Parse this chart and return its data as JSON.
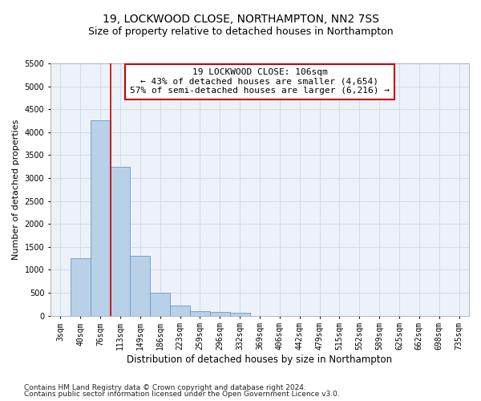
{
  "title1": "19, LOCKWOOD CLOSE, NORTHAMPTON, NN2 7SS",
  "title2": "Size of property relative to detached houses in Northampton",
  "xlabel": "Distribution of detached houses by size in Northampton",
  "ylabel": "Number of detached properties",
  "bar_labels": [
    "3sqm",
    "40sqm",
    "76sqm",
    "113sqm",
    "149sqm",
    "186sqm",
    "223sqm",
    "259sqm",
    "296sqm",
    "332sqm",
    "369sqm",
    "406sqm",
    "442sqm",
    "479sqm",
    "515sqm",
    "552sqm",
    "589sqm",
    "625sqm",
    "662sqm",
    "698sqm",
    "735sqm"
  ],
  "bar_values": [
    0,
    1250,
    4250,
    3250,
    1300,
    500,
    220,
    100,
    80,
    60,
    0,
    0,
    0,
    0,
    0,
    0,
    0,
    0,
    0,
    0,
    0
  ],
  "bar_color": "#b8d0e8",
  "bar_edge_color": "#6699cc",
  "grid_color": "#c8d8ea",
  "bg_color": "#edf2f8",
  "red_line_x": 2.5,
  "annotation_line1": "19 LOCKWOOD CLOSE: 106sqm",
  "annotation_line2": "← 43% of detached houses are smaller (4,654)",
  "annotation_line3": "57% of semi-detached houses are larger (6,216) →",
  "annotation_box_color": "#ffffff",
  "annotation_box_edge": "#cc0000",
  "ylim": [
    0,
    5500
  ],
  "yticks": [
    0,
    500,
    1000,
    1500,
    2000,
    2500,
    3000,
    3500,
    4000,
    4500,
    5000,
    5500
  ],
  "footer1": "Contains HM Land Registry data © Crown copyright and database right 2024.",
  "footer2": "Contains public sector information licensed under the Open Government Licence v3.0.",
  "title1_fontsize": 10,
  "title2_fontsize": 9,
  "xlabel_fontsize": 8.5,
  "ylabel_fontsize": 8,
  "tick_fontsize": 7,
  "annotation_fontsize": 8,
  "footer_fontsize": 6.5
}
